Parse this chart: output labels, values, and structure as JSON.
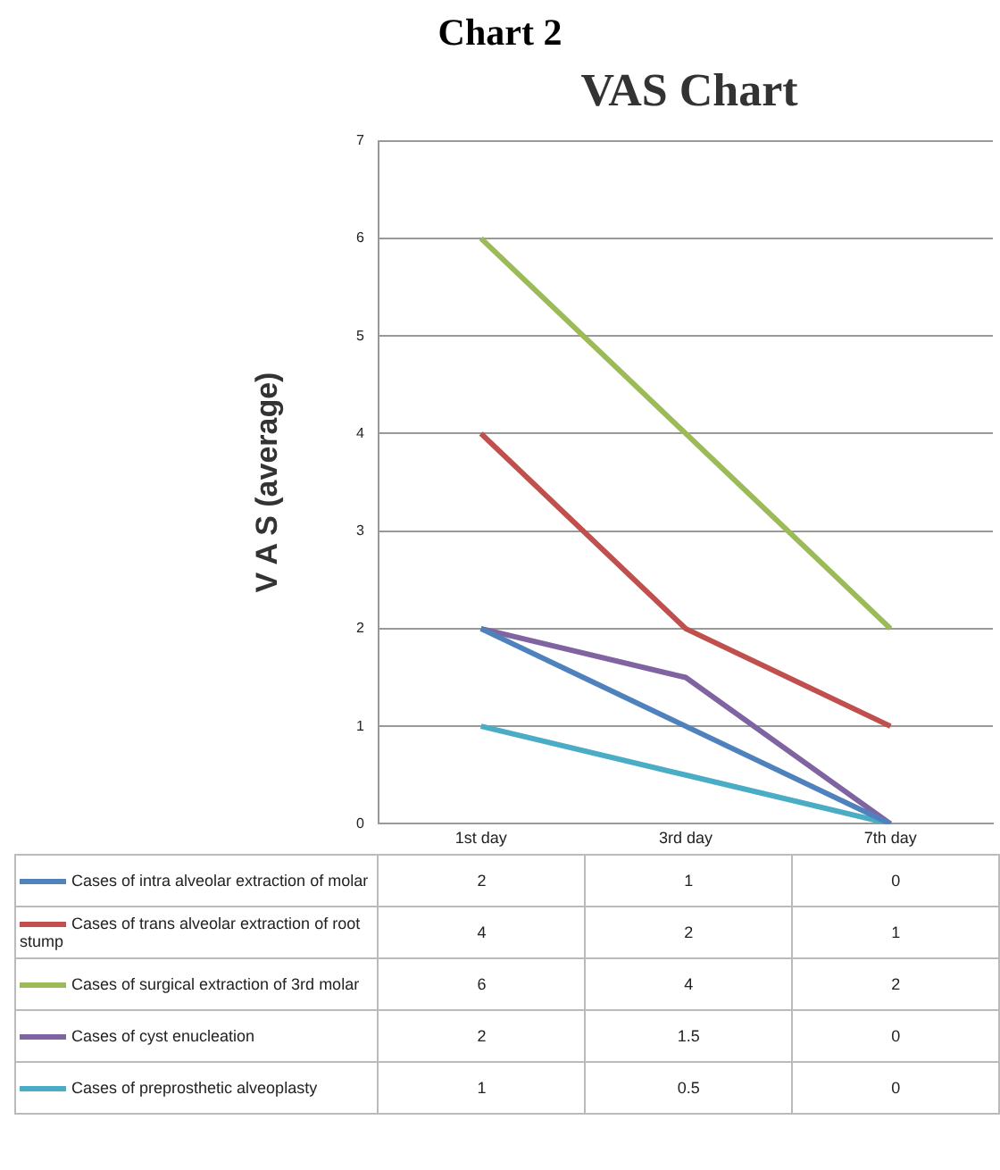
{
  "chart_data": {
    "type": "line",
    "title": "VAS Chart",
    "ylabel": "V A S (average)",
    "annotations": [
      "Chart 2"
    ],
    "categories": [
      "1st day",
      "3rd day",
      "7th day"
    ],
    "series": [
      {
        "name": "Cases of intra alveolar extraction of molar",
        "color": "#4f81bd",
        "values": [
          2,
          1,
          0
        ]
      },
      {
        "name": "Cases of trans alveolar extraction of root stump",
        "color": "#c0504d",
        "values": [
          4,
          2,
          1
        ]
      },
      {
        "name": "Cases of surgical extraction of 3rd molar",
        "color": "#9bbb59",
        "values": [
          6,
          4,
          2
        ]
      },
      {
        "name": "Cases of cyst enucleation",
        "color": "#8064a2",
        "values": [
          2,
          1.5,
          0
        ]
      },
      {
        "name": "Cases of preprosthetic alveoplasty",
        "color": "#4bacc6",
        "values": [
          1,
          0.5,
          0
        ]
      }
    ],
    "ylim": [
      0,
      7
    ],
    "yticks": [
      0,
      1,
      2,
      3,
      4,
      5,
      6,
      7
    ],
    "grid": "y",
    "legend": "bottom",
    "data_labels": true,
    "marker": "none",
    "line_style": "solid"
  }
}
